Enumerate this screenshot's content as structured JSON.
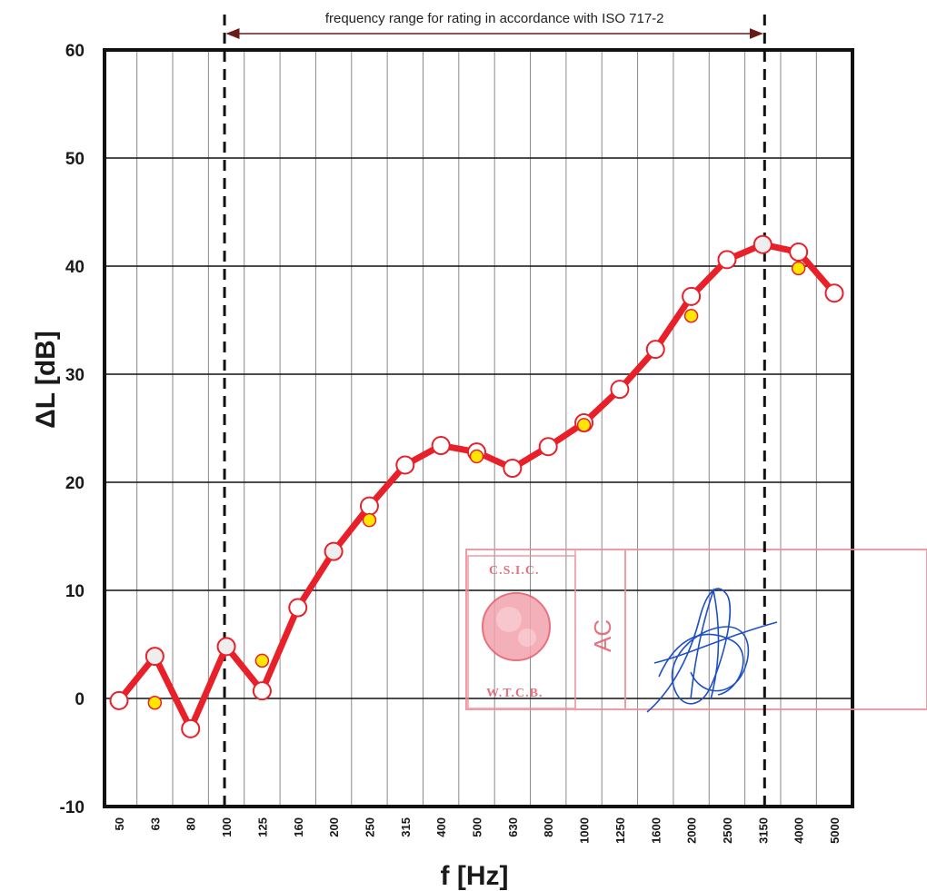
{
  "chart_data": {
    "type": "line",
    "title": "",
    "xlabel": "f [Hz]",
    "ylabel": "ΔL [dB]",
    "ylim": [
      -10,
      60
    ],
    "y_ticks": [
      "-10",
      "0",
      "10",
      "20",
      "30",
      "40",
      "50",
      "60"
    ],
    "categories": [
      "50",
      "63",
      "80",
      "100",
      "125",
      "160",
      "200",
      "250",
      "315",
      "400",
      "500",
      "630",
      "800",
      "1000",
      "1250",
      "1600",
      "2000",
      "2500",
      "3150",
      "4000",
      "5000"
    ],
    "grid": true,
    "series": [
      {
        "marker": "open-circle",
        "line_color": "#e8202a",
        "values": [
          -0.2,
          3.9,
          -2.8,
          4.8,
          0.7,
          8.4,
          13.6,
          17.8,
          21.6,
          23.4,
          22.8,
          21.3,
          23.3,
          25.5,
          28.6,
          32.3,
          37.2,
          40.6,
          42.0,
          41.3,
          37.5
        ]
      },
      {
        "marker": "yellow-dot",
        "color": "#ffe600",
        "points": [
          {
            "x": "63",
            "y": -0.4
          },
          {
            "x": "125",
            "y": 3.5
          },
          {
            "x": "250",
            "y": 16.5
          },
          {
            "x": "500",
            "y": 22.4
          },
          {
            "x": "1000",
            "y": 25.3
          },
          {
            "x": "2000",
            "y": 35.4
          },
          {
            "x": "4000",
            "y": 39.8
          }
        ]
      }
    ],
    "rating_range": {
      "from": "100",
      "to": "3150",
      "label": "frequency range for rating in accordance with ISO 717-2"
    }
  },
  "stamp": {
    "top_text": "C.S.I.C.",
    "bottom_text": "W.T.C.B.",
    "side_text": "AC",
    "color": "#e25a6a"
  },
  "signature": {
    "color": "#1f4fc4"
  }
}
